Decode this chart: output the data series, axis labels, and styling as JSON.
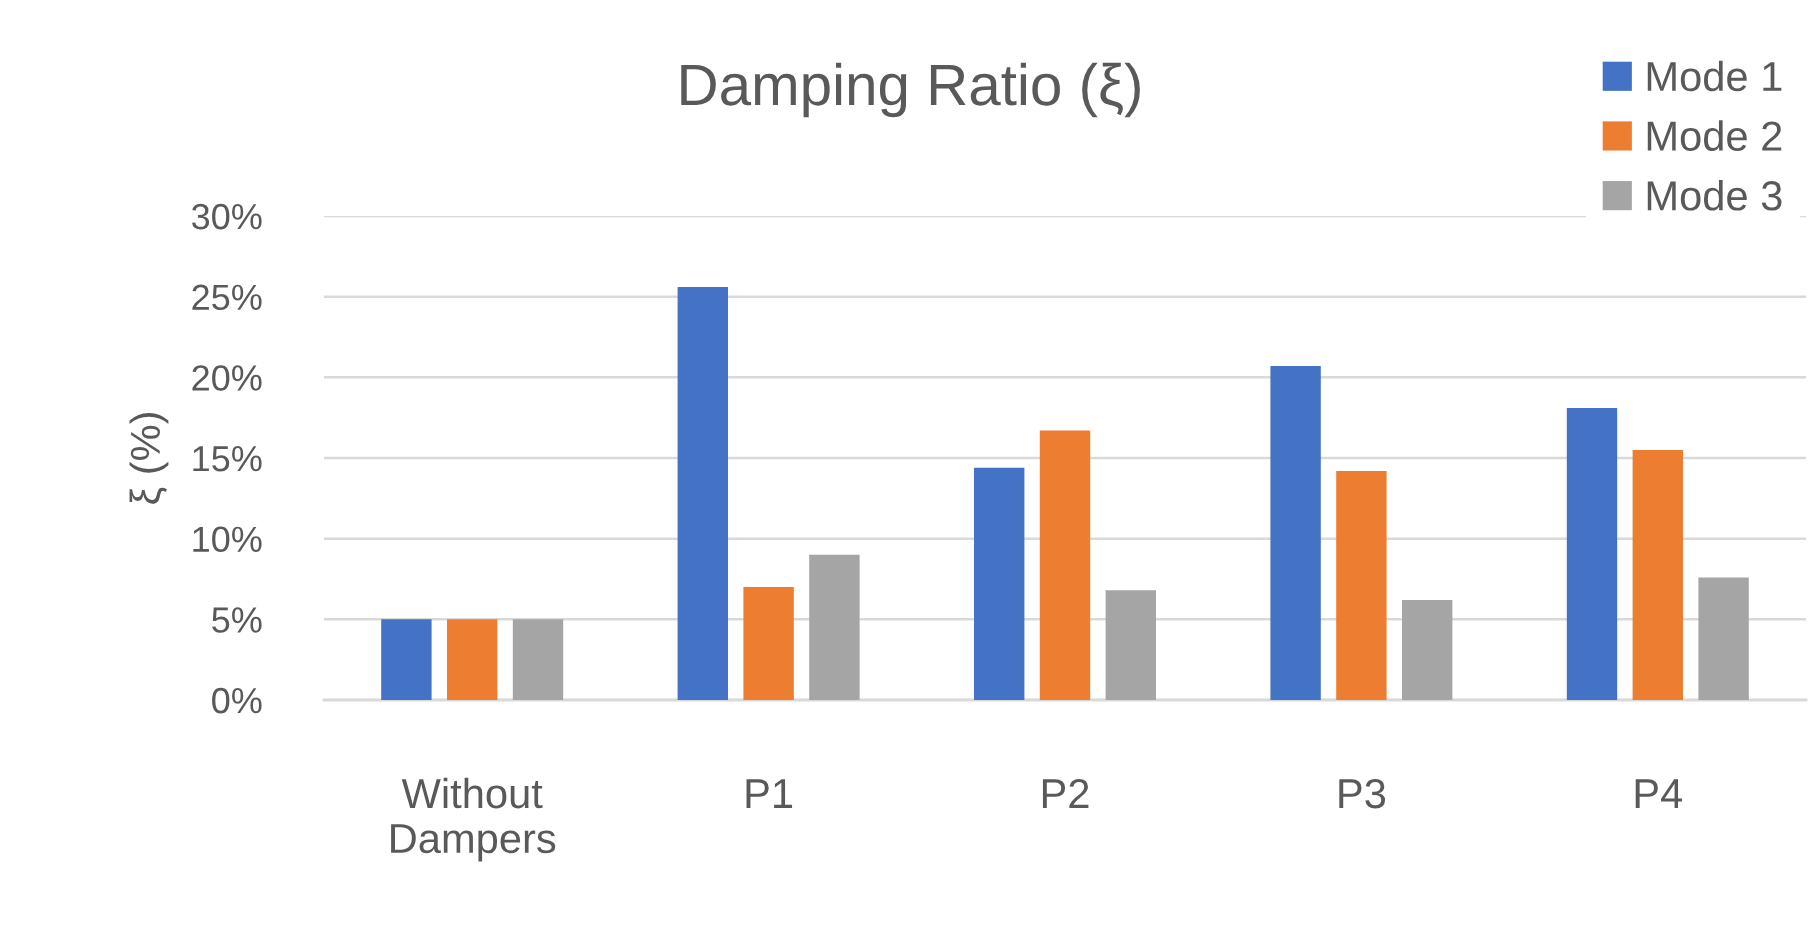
{
  "chart_data": {
    "type": "bar",
    "title": "Damping Ratio (ξ)",
    "ylabel": "ξ (%)",
    "categories": [
      "Without\nDampers",
      "P1",
      "P2",
      "P3",
      "P4"
    ],
    "series": [
      {
        "name": "Mode 1",
        "color": "#4472c4",
        "values": [
          5,
          25.6,
          14.4,
          20.7,
          18.1
        ]
      },
      {
        "name": "Mode 2",
        "color": "#ed7d31",
        "values": [
          5,
          7,
          16.7,
          14.2,
          15.5
        ]
      },
      {
        "name": "Mode 3",
        "color": "#a5a5a5",
        "values": [
          5,
          9,
          6.8,
          6.2,
          7.6
        ]
      }
    ],
    "ylim": [
      0,
      30
    ],
    "yticks": [
      {
        "value": 0,
        "label": "0%"
      },
      {
        "value": 5,
        "label": "5%"
      },
      {
        "value": 10,
        "label": "10%"
      },
      {
        "value": 15,
        "label": "15%"
      },
      {
        "value": 20,
        "label": "20%"
      },
      {
        "value": 25,
        "label": "25%"
      },
      {
        "value": 30,
        "label": "30%"
      }
    ],
    "grid": "y",
    "legend": "top right"
  }
}
